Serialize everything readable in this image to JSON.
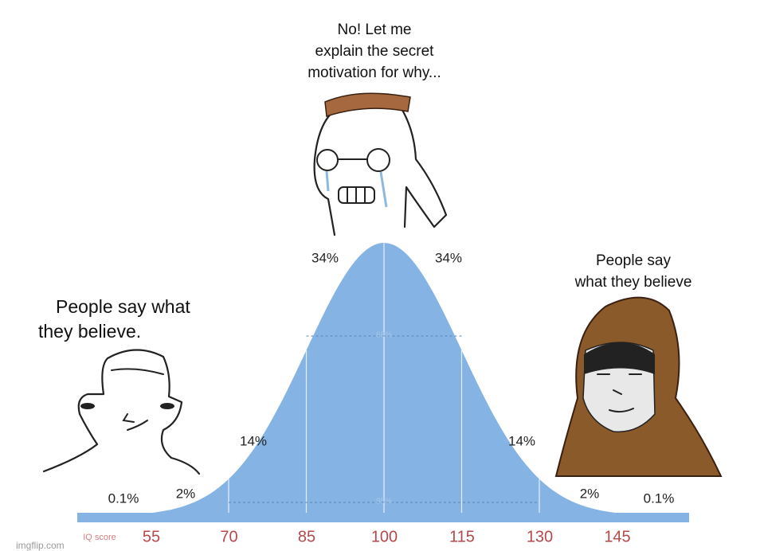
{
  "captions": {
    "top": [
      "No! Let me",
      "explain the secret",
      "motivation for why..."
    ],
    "left": [
      "People say what",
      "they believe."
    ],
    "right": [
      "People say",
      "what they believe"
    ]
  },
  "bell_curve": {
    "region_labels": [
      "0.1%",
      "2%",
      "14%",
      "34%",
      "34%",
      "14%",
      "2%",
      "0.1%"
    ],
    "inner_labels": [
      "68%",
      "95%"
    ],
    "axis_label": "IQ score",
    "ticks": [
      55,
      70,
      85,
      100,
      115,
      130,
      145
    ]
  },
  "watermark": "imgflip.com"
}
